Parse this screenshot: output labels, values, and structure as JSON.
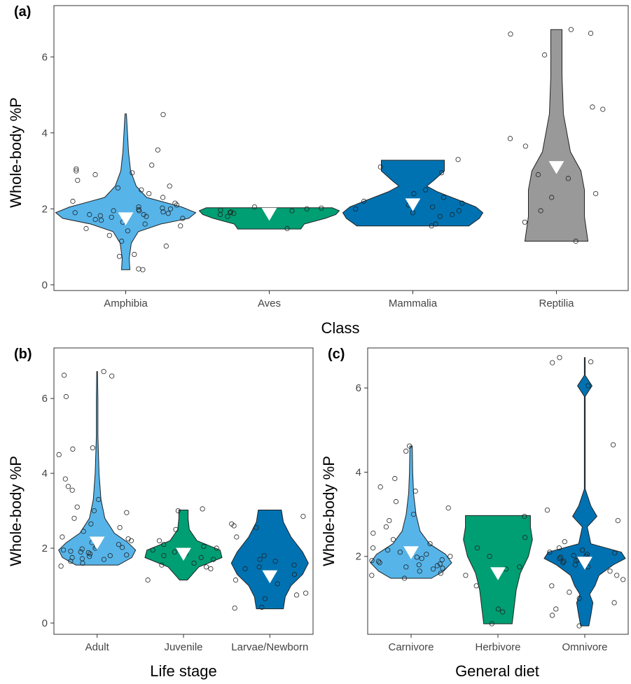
{
  "chart_data": [
    {
      "panel": "(a)",
      "type": "violin",
      "xlabel": "Class",
      "ylabel": "Whole-body %P",
      "ylim": [
        -0.15,
        7.35
      ],
      "yticks": [
        0,
        2,
        4,
        6
      ],
      "categories": [
        "Amphibia",
        "Aves",
        "Mammalia",
        "Reptilia"
      ],
      "colors": [
        "#56B4E9",
        "#009E73",
        "#0072B2",
        "#999999"
      ],
      "means": [
        1.75,
        1.87,
        2.12,
        3.1
      ],
      "distributions": [
        {
          "range": [
            0.4,
            4.5
          ],
          "profile": [
            [
              0.4,
              0.06
            ],
            [
              0.7,
              0.05
            ],
            [
              1.1,
              0.08
            ],
            [
              1.4,
              0.18
            ],
            [
              1.6,
              0.5
            ],
            [
              1.75,
              0.9
            ],
            [
              1.9,
              1.0
            ],
            [
              2.05,
              0.8
            ],
            [
              2.3,
              0.3
            ],
            [
              2.6,
              0.15
            ],
            [
              3.0,
              0.07
            ],
            [
              3.5,
              0.04
            ],
            [
              4.5,
              0.01
            ]
          ]
        },
        {
          "range": [
            1.47,
            2.03
          ],
          "profile": [
            [
              1.47,
              0.45
            ],
            [
              1.6,
              0.5
            ],
            [
              1.75,
              0.8
            ],
            [
              1.85,
              0.95
            ],
            [
              1.95,
              1.0
            ],
            [
              2.03,
              0.9
            ]
          ]
        },
        {
          "range": [
            1.55,
            3.28
          ],
          "profile": [
            [
              1.55,
              0.8
            ],
            [
              1.75,
              0.95
            ],
            [
              1.9,
              1.0
            ],
            [
              2.05,
              0.9
            ],
            [
              2.2,
              0.7
            ],
            [
              2.45,
              0.35
            ],
            [
              2.6,
              0.2
            ],
            [
              2.75,
              0.3
            ],
            [
              3.0,
              0.45
            ],
            [
              3.28,
              0.45
            ]
          ]
        },
        {
          "range": [
            1.15,
            6.72
          ],
          "profile": [
            [
              1.15,
              0.45
            ],
            [
              1.8,
              0.4
            ],
            [
              2.5,
              0.4
            ],
            [
              3.0,
              0.35
            ],
            [
              3.5,
              0.2
            ],
            [
              4.5,
              0.1
            ],
            [
              5.5,
              0.08
            ],
            [
              6.72,
              0.08
            ]
          ]
        }
      ],
      "points": [
        [
          0.4,
          0.42,
          0.75,
          0.8,
          1.02,
          1.15,
          1.3,
          1.42,
          1.48,
          1.55,
          1.6,
          1.65,
          1.7,
          1.72,
          1.75,
          1.78,
          1.8,
          1.82,
          1.85,
          1.85,
          1.88,
          1.9,
          1.92,
          1.95,
          1.95,
          1.98,
          2.0,
          2.02,
          2.05,
          2.1,
          2.15,
          2.2,
          2.3,
          2.4,
          2.5,
          2.55,
          2.6,
          2.75,
          2.9,
          2.95,
          3.0,
          3.05,
          3.15,
          3.55,
          4.48
        ],
        [
          1.48,
          1.8,
          1.85,
          1.88,
          1.9,
          1.92,
          1.95,
          1.97,
          2.0,
          2.02,
          2.05
        ],
        [
          1.55,
          1.6,
          1.8,
          1.85,
          1.9,
          1.95,
          2.0,
          2.05,
          2.1,
          2.15,
          2.2,
          2.3,
          2.4,
          2.5,
          2.95,
          3.1,
          3.3
        ],
        [
          1.15,
          1.65,
          1.95,
          2.3,
          2.4,
          2.8,
          2.9,
          3.65,
          3.85,
          4.62,
          4.68,
          6.05,
          6.6,
          6.62,
          6.72
        ]
      ]
    },
    {
      "panel": "(b)",
      "type": "violin",
      "xlabel": "Life stage",
      "ylabel": "Whole-body %P",
      "ylim": [
        -0.3,
        7.35
      ],
      "yticks": [
        0,
        2,
        4,
        6
      ],
      "categories": [
        "Adult",
        "Juvenile",
        "Larvae/Newborn"
      ],
      "colors": [
        "#56B4E9",
        "#009E73",
        "#0072B2"
      ],
      "means": [
        2.15,
        1.85,
        1.25
      ],
      "distributions": [
        {
          "range": [
            1.55,
            6.72
          ],
          "profile": [
            [
              1.55,
              0.55
            ],
            [
              1.75,
              0.9
            ],
            [
              1.95,
              1.0
            ],
            [
              2.15,
              0.8
            ],
            [
              2.4,
              0.45
            ],
            [
              2.8,
              0.2
            ],
            [
              3.3,
              0.1
            ],
            [
              4.0,
              0.05
            ],
            [
              5.0,
              0.02
            ],
            [
              6.0,
              0.02
            ],
            [
              6.72,
              0.01
            ]
          ]
        },
        {
          "range": [
            1.15,
            3.02
          ],
          "profile": [
            [
              1.15,
              0.1
            ],
            [
              1.5,
              0.4
            ],
            [
              1.75,
              1.0
            ],
            [
              1.95,
              0.95
            ],
            [
              2.2,
              0.35
            ],
            [
              2.5,
              0.15
            ],
            [
              2.8,
              0.12
            ],
            [
              3.02,
              0.12
            ]
          ]
        },
        {
          "range": [
            0.38,
            3.02
          ],
          "profile": [
            [
              0.38,
              0.35
            ],
            [
              0.7,
              0.4
            ],
            [
              1.0,
              0.55
            ],
            [
              1.3,
              0.85
            ],
            [
              1.6,
              1.0
            ],
            [
              1.9,
              0.85
            ],
            [
              2.3,
              0.55
            ],
            [
              2.7,
              0.35
            ],
            [
              3.02,
              0.3
            ]
          ]
        }
      ],
      "points": [
        [
          1.52,
          1.6,
          1.65,
          1.7,
          1.72,
          1.75,
          1.78,
          1.8,
          1.82,
          1.85,
          1.88,
          1.9,
          1.92,
          1.95,
          1.98,
          2.0,
          2.02,
          2.05,
          2.1,
          2.15,
          2.2,
          2.25,
          2.3,
          2.45,
          2.55,
          2.65,
          2.8,
          2.95,
          3.0,
          3.1,
          3.3,
          3.55,
          3.65,
          3.85,
          4.5,
          4.65,
          4.68,
          6.05,
          6.6,
          6.62,
          6.72
        ],
        [
          1.15,
          1.45,
          1.5,
          1.55,
          1.6,
          1.7,
          1.75,
          1.8,
          1.85,
          1.9,
          1.95,
          2.0,
          2.05,
          2.1,
          2.2,
          2.5,
          3.0,
          3.05
        ],
        [
          0.4,
          0.42,
          0.65,
          0.75,
          0.8,
          1.05,
          1.15,
          1.3,
          1.45,
          1.5,
          1.55,
          1.65,
          1.7,
          1.8,
          2.3,
          2.55,
          2.6,
          2.65,
          2.85
        ]
      ]
    },
    {
      "panel": "(c)",
      "type": "violin",
      "xlabel": "General diet",
      "ylabel": "Whole-body %P",
      "ylim": [
        0.15,
        6.95
      ],
      "yticks": [
        2,
        4,
        6
      ],
      "categories": [
        "Carnivore",
        "Herbivore",
        "Omnivore"
      ],
      "colors": [
        "#56B4E9",
        "#009E73",
        "#0072B2"
      ],
      "means": [
        2.1,
        1.6,
        1.85
      ],
      "distributions": [
        {
          "range": [
            1.48,
            4.62
          ],
          "profile": [
            [
              1.48,
              0.5
            ],
            [
              1.65,
              0.8
            ],
            [
              1.85,
              1.0
            ],
            [
              2.05,
              0.85
            ],
            [
              2.3,
              0.45
            ],
            [
              2.6,
              0.22
            ],
            [
              3.0,
              0.12
            ],
            [
              3.5,
              0.06
            ],
            [
              4.0,
              0.04
            ],
            [
              4.62,
              0.03
            ]
          ]
        },
        {
          "range": [
            0.4,
            2.97
          ],
          "profile": [
            [
              0.4,
              0.35
            ],
            [
              0.8,
              0.4
            ],
            [
              1.2,
              0.45
            ],
            [
              1.6,
              0.55
            ],
            [
              2.0,
              0.75
            ],
            [
              2.4,
              0.85
            ],
            [
              2.7,
              0.8
            ],
            [
              2.97,
              0.8
            ]
          ]
        },
        {
          "range": [
            0.35,
            6.72
          ],
          "profile": [
            [
              0.35,
              0.1
            ],
            [
              0.6,
              0.15
            ],
            [
              0.9,
              0.2
            ],
            [
              1.1,
              0.12
            ],
            [
              1.3,
              0.25
            ],
            [
              1.55,
              0.35
            ],
            [
              1.8,
              0.7
            ],
            [
              1.95,
              1.0
            ],
            [
              2.1,
              0.9
            ],
            [
              2.3,
              0.15
            ],
            [
              2.7,
              0.06
            ],
            [
              2.95,
              0.3
            ],
            [
              3.2,
              0.15
            ],
            [
              3.6,
              0.01
            ],
            [
              5.8,
              0.01
            ],
            [
              6.05,
              0.18
            ],
            [
              6.3,
              0.01
            ],
            [
              6.72,
              0.01
            ]
          ]
        }
      ],
      "points": [
        [
          1.48,
          1.55,
          1.6,
          1.65,
          1.7,
          1.72,
          1.75,
          1.78,
          1.8,
          1.82,
          1.85,
          1.88,
          1.9,
          1.92,
          1.95,
          1.98,
          2.0,
          2.05,
          2.1,
          2.15,
          2.2,
          2.3,
          2.4,
          2.55,
          2.7,
          2.85,
          3.0,
          3.15,
          3.3,
          3.55,
          3.65,
          3.85,
          4.5,
          4.62
        ],
        [
          0.4,
          0.68,
          0.75,
          1.3,
          1.55,
          1.7,
          1.75,
          2.0,
          2.2,
          2.45,
          2.95
        ],
        [
          0.35,
          0.6,
          0.75,
          0.9,
          1.0,
          1.15,
          1.3,
          1.45,
          1.55,
          1.65,
          1.75,
          1.8,
          1.85,
          1.88,
          1.9,
          1.92,
          1.95,
          1.98,
          2.0,
          2.02,
          2.05,
          2.08,
          2.1,
          2.15,
          2.2,
          2.35,
          2.85,
          3.1,
          4.65,
          6.05,
          6.6,
          6.62,
          6.72
        ]
      ]
    }
  ]
}
